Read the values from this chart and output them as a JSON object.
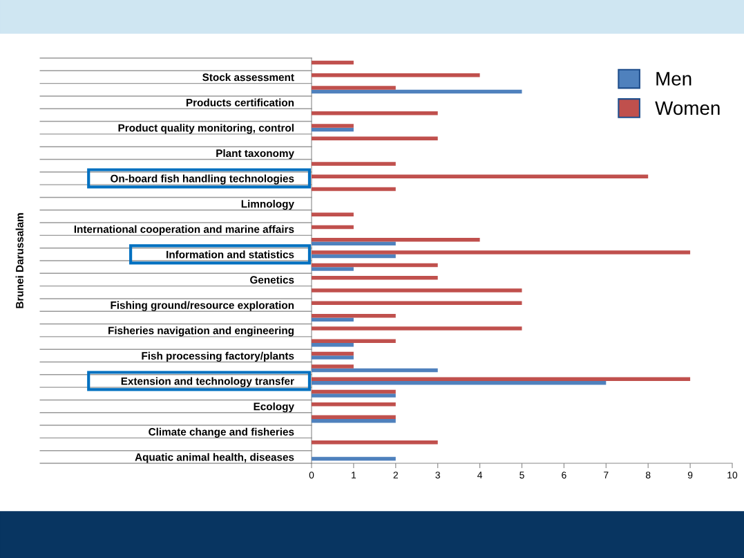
{
  "chart_data": {
    "type": "bar",
    "orientation": "horizontal",
    "ylabel": "Brunei Darussalam",
    "categories": [
      null,
      "Stock assessment",
      null,
      "Products certification",
      null,
      "Product quality monitoring, control",
      null,
      "Plant taxonomy",
      null,
      "On-board fish handling technologies",
      null,
      "Limnology",
      null,
      "International cooperation and marine affairs",
      null,
      "Information and statistics",
      null,
      "Genetics",
      null,
      "Fishing ground/resource exploration",
      null,
      "Fisheries navigation and engineering",
      null,
      "Fish processing factory/plants",
      null,
      "Extension and technology transfer",
      null,
      "Ecology",
      null,
      "Climate change and fisheries",
      null,
      "Aquatic animal health, diseases"
    ],
    "series": [
      {
        "name": "Men",
        "color": "#4f81bd",
        "values": [
          0,
          0,
          5,
          0,
          0,
          1,
          0,
          0,
          0,
          0,
          0,
          0,
          0,
          0,
          2,
          2,
          1,
          0,
          0,
          0,
          1,
          0,
          1,
          1,
          3,
          7,
          2,
          0,
          2,
          0,
          0,
          2
        ]
      },
      {
        "name": "Women",
        "color": "#c0504d",
        "values": [
          1,
          4,
          2,
          0,
          3,
          1,
          3,
          0,
          2,
          8,
          2,
          0,
          1,
          1,
          4,
          9,
          3,
          3,
          5,
          5,
          2,
          5,
          2,
          1,
          1,
          9,
          2,
          2,
          2,
          0,
          3,
          0
        ]
      }
    ],
    "xlim": [
      0,
      10
    ],
    "xticks": [
      0,
      1,
      2,
      3,
      4,
      5,
      6,
      7,
      8,
      9,
      10
    ],
    "legend": "top right"
  }
}
